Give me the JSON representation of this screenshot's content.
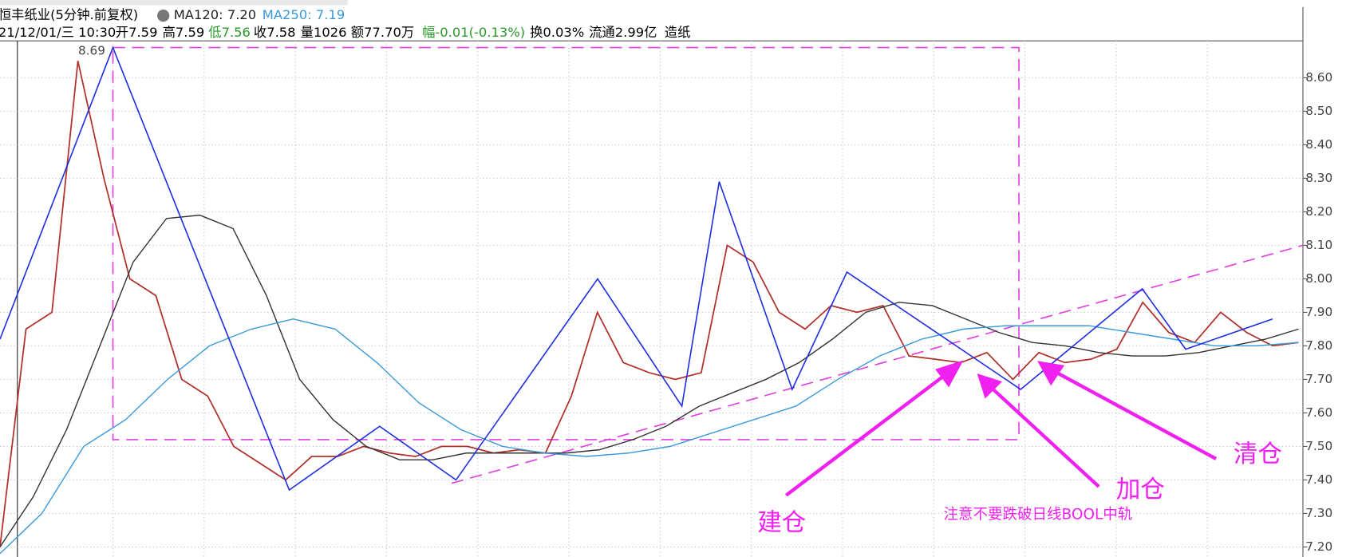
{
  "header": {
    "title": "恒丰纸业(5分钟.前复权)",
    "ma120": "MA120: 7.20",
    "ma250": "MA250: 7.19",
    "date": "21/12/01/三 10:30",
    "open": "开7.59",
    "high": "高7.59",
    "low": "低7.56",
    "close": "收7.58",
    "volume": "量1026",
    "amount": "额77.70万",
    "change": "幅-0.01(-0.13%)",
    "turnover": "换0.03%",
    "float": "流通2.99亿",
    "industry": "造纸"
  },
  "chart_data": {
    "type": "line",
    "ylim": [
      7.17,
      8.71
    ],
    "yticks": [
      {
        "value": 8.6,
        "label": "8.60"
      },
      {
        "value": 8.5,
        "label": "8.50"
      },
      {
        "value": 8.4,
        "label": "8.40"
      },
      {
        "value": 8.3,
        "label": "8.30"
      },
      {
        "value": 8.2,
        "label": "8.20"
      },
      {
        "value": 8.1,
        "label": "8.10"
      },
      {
        "value": 8.0,
        "label": "8.00"
      },
      {
        "value": 7.9,
        "label": "7.90"
      },
      {
        "value": 7.8,
        "label": "7.80"
      },
      {
        "value": 7.7,
        "label": "7.70"
      },
      {
        "value": 7.6,
        "label": "7.60"
      },
      {
        "value": 7.5,
        "label": "7.50"
      },
      {
        "value": 7.4,
        "label": "7.40"
      },
      {
        "value": 7.3,
        "label": "7.30"
      },
      {
        "value": 7.2,
        "label": "7.20"
      }
    ],
    "grid": true,
    "series": [
      {
        "name": "price",
        "color": "#b0302a",
        "values": [
          7.2,
          7.85,
          7.9,
          8.65,
          8.3,
          8.0,
          7.95,
          7.7,
          7.65,
          7.5,
          7.45,
          7.4,
          7.47,
          7.47,
          7.5,
          7.48,
          7.47,
          7.5,
          7.5,
          7.48,
          7.49,
          7.48,
          7.65,
          7.9,
          7.75,
          7.72,
          7.7,
          7.72,
          8.1,
          8.05,
          7.9,
          7.85,
          7.92,
          7.9,
          7.92,
          7.77,
          7.76,
          7.75,
          7.78,
          7.7,
          7.78,
          7.75,
          7.76,
          7.79,
          7.93,
          7.84,
          7.81,
          7.9,
          7.84,
          7.8,
          7.81
        ]
      },
      {
        "name": "MA120",
        "color": "#333333",
        "values": [
          7.2,
          7.35,
          7.55,
          7.8,
          8.05,
          8.18,
          8.19,
          8.15,
          7.95,
          7.7,
          7.58,
          7.5,
          7.46,
          7.46,
          7.48,
          7.48,
          7.48,
          7.48,
          7.49,
          7.52,
          7.56,
          7.62,
          7.66,
          7.7,
          7.75,
          7.82,
          7.9,
          7.93,
          7.92,
          7.88,
          7.84,
          7.81,
          7.8,
          7.78,
          7.77,
          7.77,
          7.78,
          7.8,
          7.82,
          7.85
        ]
      },
      {
        "name": "MA250",
        "color": "#3a9ad9",
        "values": [
          7.18,
          7.3,
          7.5,
          7.58,
          7.7,
          7.8,
          7.85,
          7.88,
          7.85,
          7.75,
          7.63,
          7.55,
          7.5,
          7.48,
          7.47,
          7.48,
          7.5,
          7.54,
          7.58,
          7.62,
          7.7,
          7.77,
          7.82,
          7.85,
          7.86,
          7.86,
          7.86,
          7.84,
          7.82,
          7.8,
          7.8,
          7.81
        ]
      }
    ],
    "zigzag": [
      7.82,
      8.69,
      7.37,
      7.56,
      7.4,
      8.0,
      7.62,
      8.29,
      7.67,
      8.02,
      7.67,
      7.97,
      7.79,
      7.88
    ],
    "peak_label": "8.69",
    "box": [
      8.69,
      7.52
    ],
    "trendline": [
      7.39,
      8.1
    ],
    "annotations": {
      "build": "建仓",
      "add": "加仓",
      "clear": "清仓",
      "note": "注意不要跌破日线BOOL中轨"
    }
  }
}
